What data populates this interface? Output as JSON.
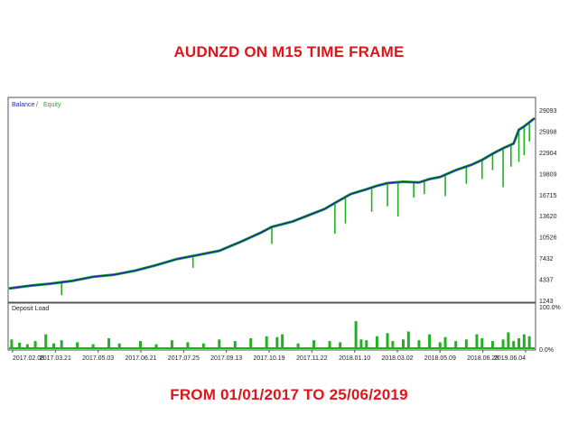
{
  "headings": {
    "top": "AUDNZD ON M15 TIME FRAME",
    "bottom": "FROM 01/01/2017 TO 25/06/2019"
  },
  "colors": {
    "heading": "#e0151b",
    "balance": "#1d2fa8",
    "equity": "#1fb21f",
    "deposit_load": "#1fb21f",
    "frame": "#555555",
    "panel_background": "#ffffff"
  },
  "chart_data": [
    {
      "type": "line",
      "legend": {
        "placement": "top-left",
        "entries": [
          "Balance",
          "Equity"
        ],
        "separator": " / "
      },
      "yticks": [
        29093,
        25998,
        22904,
        19809,
        16715,
        13620,
        10526,
        7432,
        4337,
        1243
      ],
      "ylim": [
        1243,
        29093
      ],
      "grid": false,
      "xticks": [
        "2017.02.08",
        "2017.03.21",
        "2017.05.03",
        "2017.06.21",
        "2017.07.25",
        "2017.09.13",
        "2017.10.19",
        "2017.11.22",
        "2018.01.10",
        "2018.03.02",
        "2018.05.09",
        "2018.06.28",
        "2019.06.04"
      ],
      "series": [
        {
          "name": "Balance",
          "x": [
            0,
            0.04,
            0.08,
            0.12,
            0.16,
            0.2,
            0.24,
            0.28,
            0.32,
            0.36,
            0.4,
            0.44,
            0.48,
            0.5,
            0.54,
            0.58,
            0.6,
            0.62,
            0.65,
            0.68,
            0.7,
            0.72,
            0.75,
            0.78,
            0.8,
            0.82,
            0.85,
            0.88,
            0.9,
            0.92,
            0.94,
            0.96,
            0.97,
            0.98,
            1.0
          ],
          "values": [
            3000,
            3400,
            3700,
            4100,
            4700,
            5000,
            5600,
            6400,
            7300,
            7900,
            8500,
            9800,
            11200,
            12000,
            12800,
            14000,
            14600,
            15500,
            16800,
            17500,
            18000,
            18400,
            18600,
            18500,
            19000,
            19300,
            20300,
            21100,
            21800,
            22700,
            23500,
            24200,
            26200,
            26700,
            27900
          ]
        },
        {
          "name": "Equity",
          "x": [
            0,
            0.04,
            0.08,
            0.12,
            0.16,
            0.2,
            0.24,
            0.28,
            0.32,
            0.36,
            0.4,
            0.44,
            0.48,
            0.5,
            0.54,
            0.58,
            0.6,
            0.62,
            0.65,
            0.68,
            0.7,
            0.72,
            0.75,
            0.78,
            0.8,
            0.82,
            0.85,
            0.88,
            0.9,
            0.92,
            0.94,
            0.96,
            0.97,
            0.98,
            1.0
          ],
          "values": [
            3000,
            3400,
            3700,
            4100,
            4700,
            5000,
            5600,
            6400,
            7300,
            7900,
            8500,
            9800,
            11200,
            12000,
            12800,
            14000,
            14600,
            15500,
            16800,
            17500,
            18000,
            18400,
            18600,
            18500,
            19000,
            19300,
            20300,
            21100,
            21800,
            22700,
            23500,
            24200,
            26200,
            26700,
            27900
          ],
          "drawdowns": [
            {
              "x": 0.1,
              "value": 2000
            },
            {
              "x": 0.35,
              "value": 6000
            },
            {
              "x": 0.5,
              "value": 9500
            },
            {
              "x": 0.62,
              "value": 11000
            },
            {
              "x": 0.64,
              "value": 12500
            },
            {
              "x": 0.69,
              "value": 14200
            },
            {
              "x": 0.72,
              "value": 15000
            },
            {
              "x": 0.74,
              "value": 13500
            },
            {
              "x": 0.77,
              "value": 16300
            },
            {
              "x": 0.79,
              "value": 16800
            },
            {
              "x": 0.83,
              "value": 16500
            },
            {
              "x": 0.87,
              "value": 18300
            },
            {
              "x": 0.9,
              "value": 19000
            },
            {
              "x": 0.92,
              "value": 20300
            },
            {
              "x": 0.94,
              "value": 17800
            },
            {
              "x": 0.955,
              "value": 20800
            },
            {
              "x": 0.97,
              "value": 21500
            },
            {
              "x": 0.98,
              "value": 22500
            },
            {
              "x": 0.99,
              "value": 24500
            }
          ]
        }
      ]
    },
    {
      "type": "bar",
      "title": "Deposit Load",
      "yticks": [
        "100.0%",
        "0.0%"
      ],
      "ylim": [
        0,
        100
      ],
      "x": [
        0.005,
        0.02,
        0.035,
        0.05,
        0.07,
        0.085,
        0.1,
        0.13,
        0.16,
        0.19,
        0.21,
        0.25,
        0.28,
        0.31,
        0.34,
        0.37,
        0.4,
        0.43,
        0.46,
        0.49,
        0.51,
        0.52,
        0.55,
        0.58,
        0.61,
        0.63,
        0.66,
        0.67,
        0.68,
        0.7,
        0.72,
        0.73,
        0.75,
        0.76,
        0.78,
        0.8,
        0.82,
        0.83,
        0.85,
        0.87,
        0.89,
        0.9,
        0.92,
        0.94,
        0.95,
        0.96,
        0.97,
        0.98,
        0.99
      ],
      "values": [
        22,
        14,
        10,
        18,
        35,
        12,
        20,
        15,
        10,
        25,
        12,
        18,
        10,
        20,
        15,
        12,
        22,
        18,
        25,
        30,
        28,
        35,
        12,
        20,
        18,
        15,
        68,
        22,
        20,
        30,
        38,
        18,
        22,
        42,
        20,
        35,
        15,
        28,
        18,
        22,
        35,
        25,
        18,
        22,
        40,
        18,
        25,
        35,
        30
      ]
    }
  ]
}
